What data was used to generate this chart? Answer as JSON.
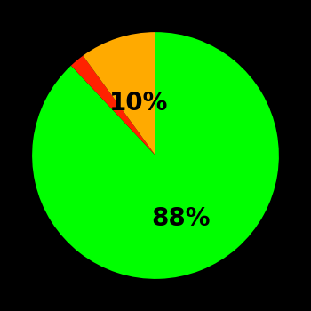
{
  "slices": [
    88,
    2,
    10
  ],
  "colors": [
    "#00ff00",
    "#ff2200",
    "#ffaa00"
  ],
  "labels": [
    "88%",
    "",
    "10%"
  ],
  "background_color": "#000000",
  "startangle": 90,
  "label_fontsize": 20,
  "label_fontweight": "bold",
  "label_radii": [
    0.55,
    0,
    0.45
  ]
}
